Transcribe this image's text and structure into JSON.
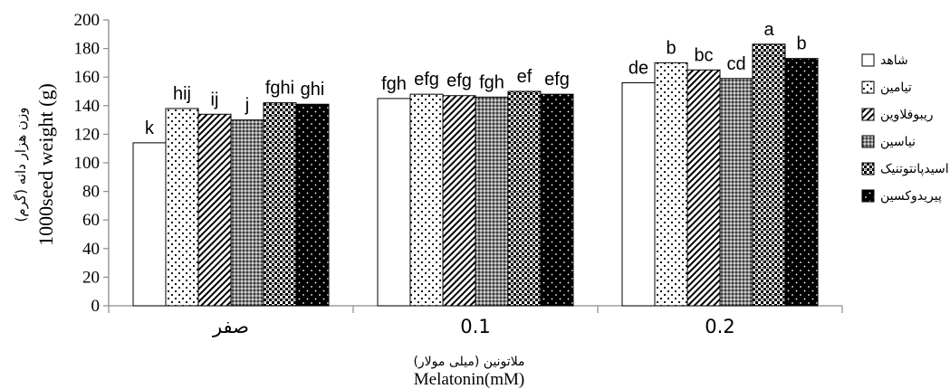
{
  "chart_data": {
    "type": "bar",
    "categories": [
      "صفر",
      "0.1",
      "0.2"
    ],
    "series": [
      {
        "name": "شاهد",
        "values": [
          114,
          145,
          156
        ],
        "letters": [
          "k",
          "fgh",
          "de"
        ],
        "pattern": "white"
      },
      {
        "name": "تیامین",
        "values": [
          138,
          148,
          170
        ],
        "letters": [
          "hij",
          "efg",
          "b"
        ],
        "pattern": "dots"
      },
      {
        "name": "ریبوفلاوین",
        "values": [
          134,
          147,
          165
        ],
        "letters": [
          "ij",
          "efg",
          "bc"
        ],
        "pattern": "diag"
      },
      {
        "name": "نیاسین",
        "values": [
          130,
          146,
          159
        ],
        "letters": [
          "j",
          "fgh",
          "cd"
        ],
        "pattern": "fine"
      },
      {
        "name": "اسیدپانتوتنیک",
        "values": [
          142,
          150,
          183
        ],
        "letters": [
          "fghi",
          "ef",
          "a"
        ],
        "pattern": "checker"
      },
      {
        "name": "پیریدوکسین",
        "values": [
          141,
          148,
          173
        ],
        "letters": [
          "ghi",
          "efg",
          "b"
        ],
        "pattern": "blackdots"
      }
    ],
    "ylabel_fa": "وزن هزار دانه (گرم)",
    "ylabel_en": "1000seed weight (g)",
    "xlabel_fa": "ملاتونین (میلی مولار)",
    "xlabel_en": "Melatonin(mM)",
    "ylim": [
      0,
      200
    ],
    "yticks": [
      0,
      20,
      40,
      60,
      80,
      100,
      120,
      140,
      160,
      180,
      200
    ],
    "grid": false,
    "legend_position": "right"
  }
}
